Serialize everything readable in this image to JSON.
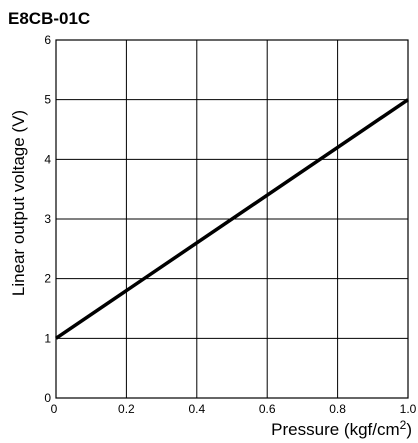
{
  "chart_data": {
    "type": "line",
    "title": "E8CB-01C",
    "xlabel": "Pressure (kgf/cm",
    "xlabel_sup": "2",
    "xlabel_close": ")",
    "ylabel": "Linear output voltage (V)",
    "xlim": [
      0,
      1.0
    ],
    "ylim": [
      0,
      6
    ],
    "x_ticks": [
      "0",
      "0.2",
      "0.4",
      "0.6",
      "0.8",
      "1.0"
    ],
    "y_ticks": [
      "0",
      "1",
      "2",
      "3",
      "4",
      "5",
      "6"
    ],
    "grid": true,
    "series": [
      {
        "x": [
          0,
          1.0
        ],
        "values": [
          1,
          5
        ]
      }
    ],
    "colors": {
      "line": "#000000",
      "grid": "#000000"
    }
  }
}
